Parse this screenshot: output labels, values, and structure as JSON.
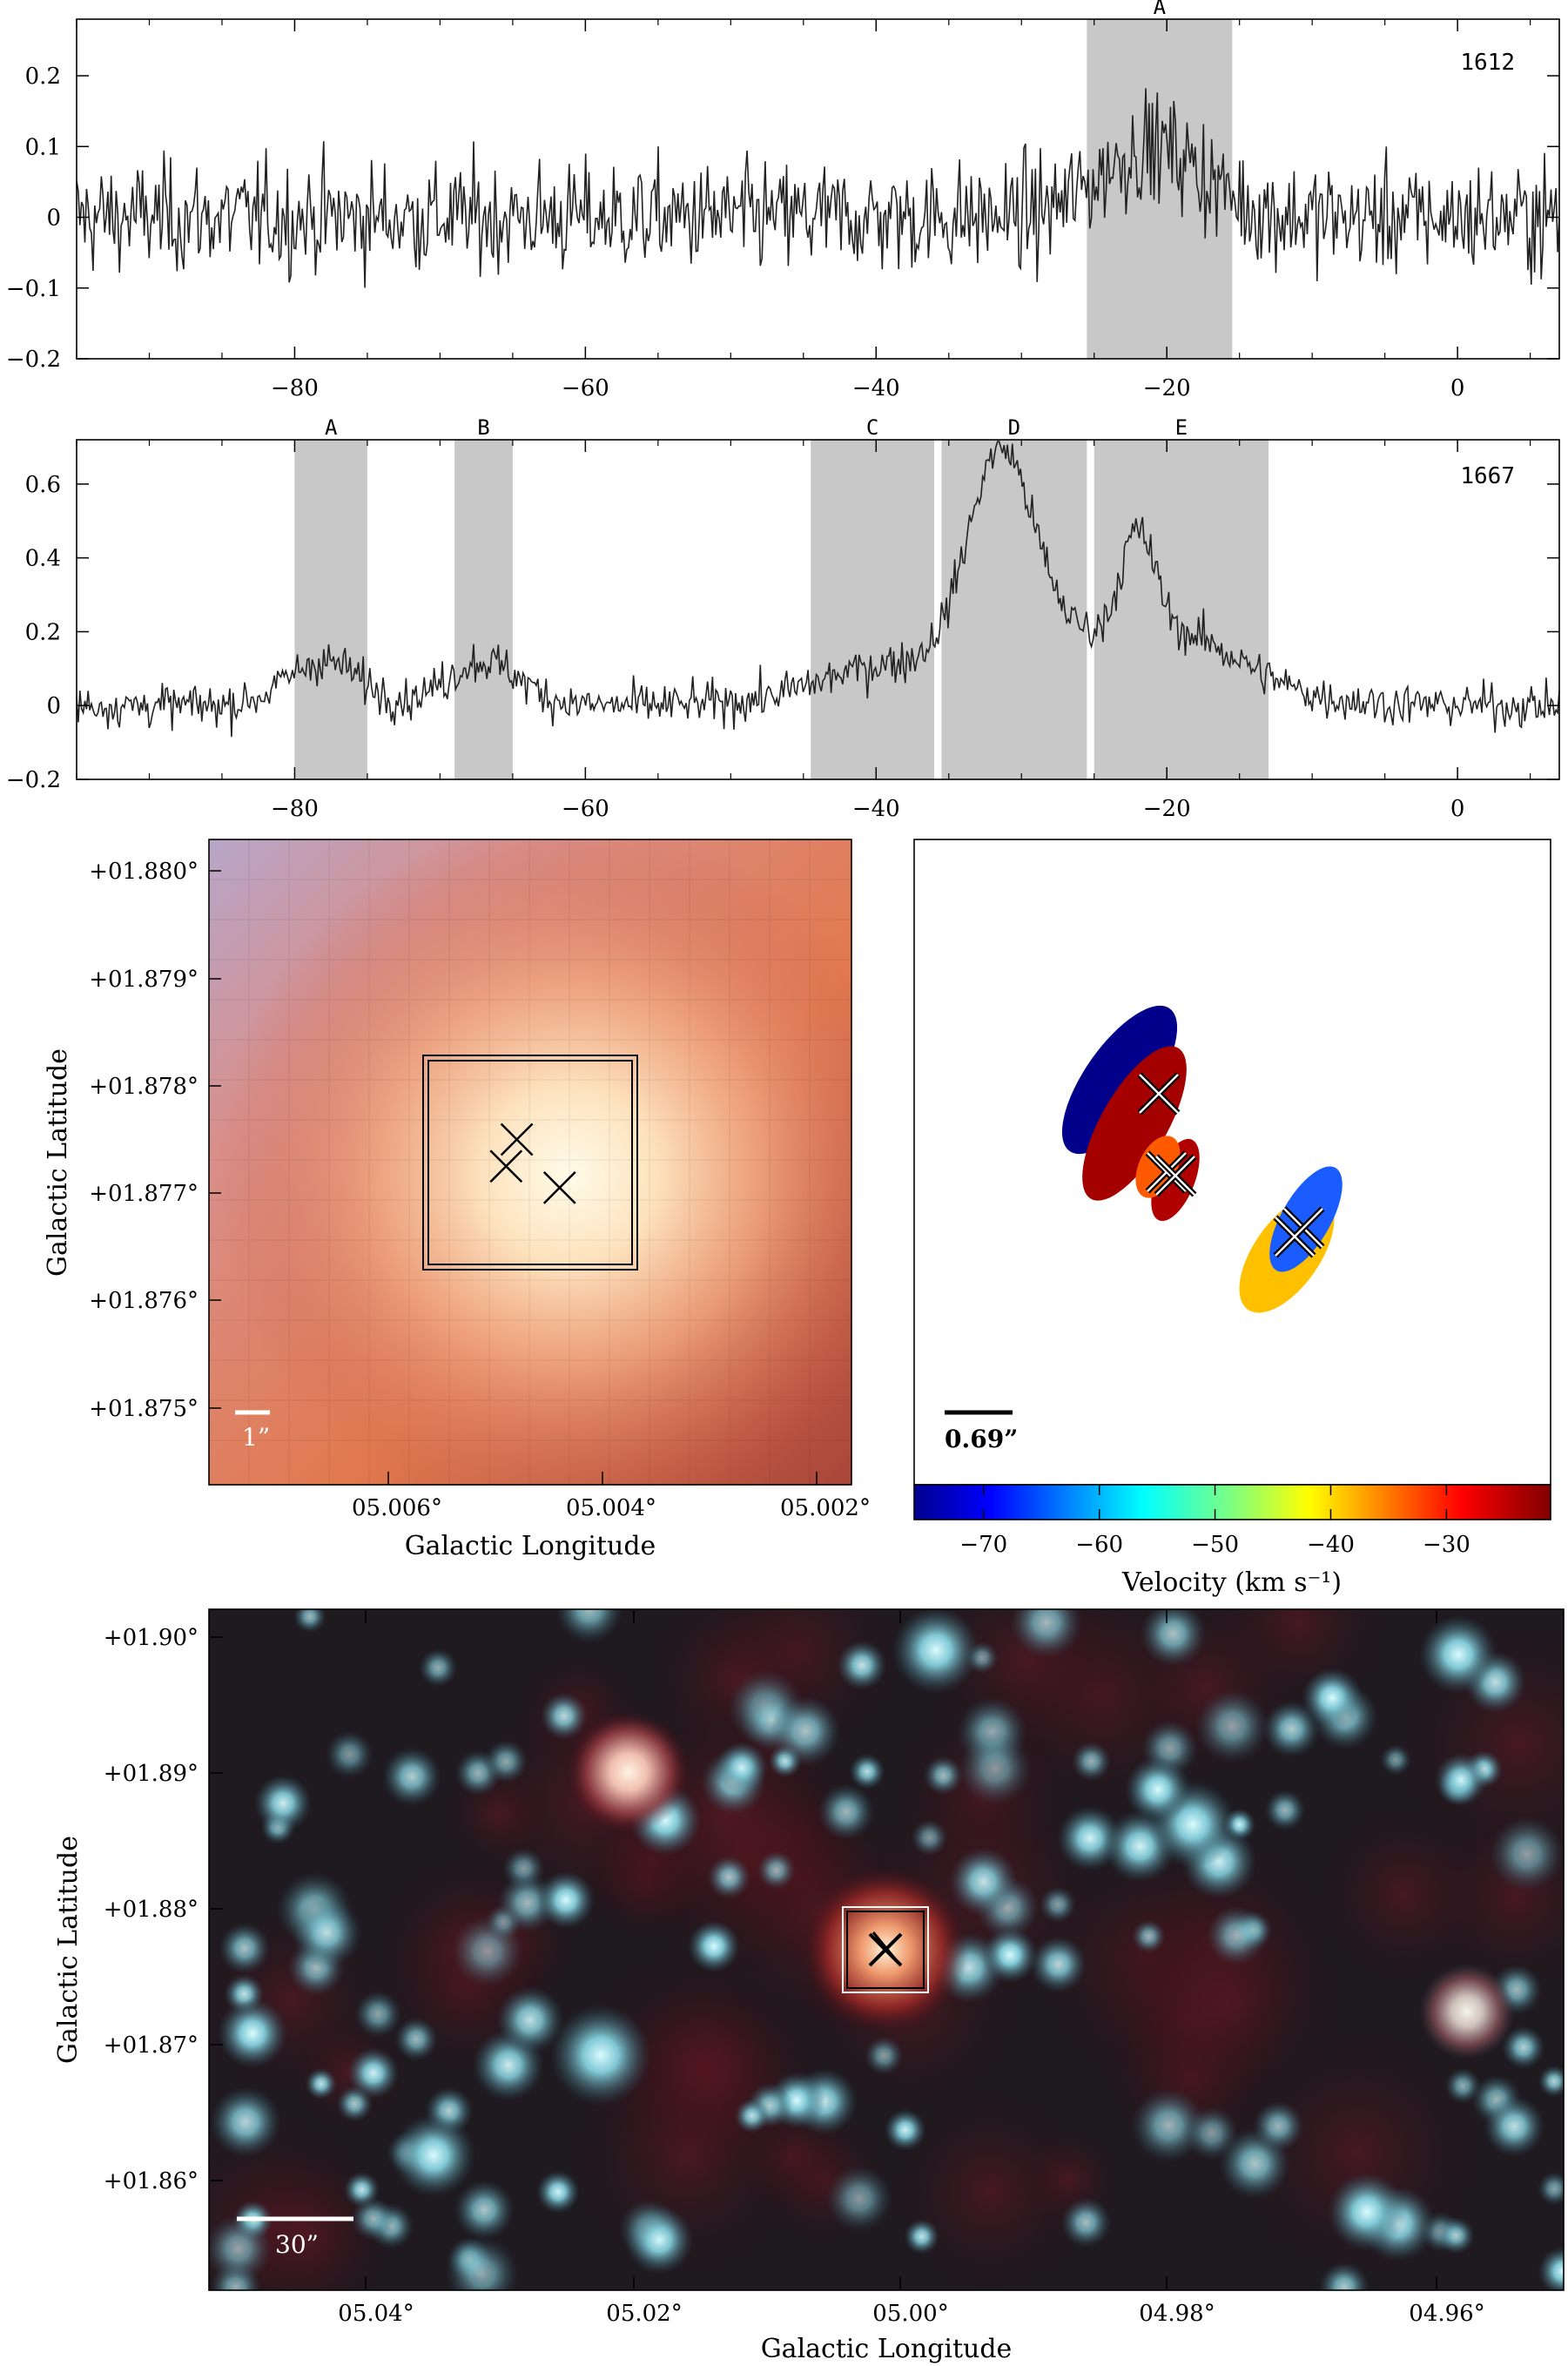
{
  "chart_data": [
    {
      "id": "spectrum_1612",
      "type": "line",
      "frequency_label": "1612",
      "xlim": [
        -95,
        7
      ],
      "ylim": [
        -0.2,
        0.28
      ],
      "x_ticks": [
        -80,
        -60,
        -40,
        -20,
        0
      ],
      "x_tick_labels": [
        "−80",
        "−60",
        "−40",
        "−20",
        "0"
      ],
      "y_ticks": [
        -0.2,
        -0.1,
        0,
        0.1,
        0.2
      ],
      "y_tick_labels": [
        "−0.2",
        "−0.1",
        "0",
        "0.1",
        "0.2"
      ],
      "noise_sigma": 0.055,
      "regions": [
        {
          "label": "A",
          "x": [
            -25.5,
            -15.5
          ]
        }
      ],
      "features": [
        {
          "center": -21,
          "width": 3.5,
          "amplitude": 0.1
        }
      ]
    },
    {
      "id": "spectrum_1667",
      "type": "line",
      "frequency_label": "1667",
      "xlim": [
        -95,
        7
      ],
      "ylim": [
        -0.2,
        0.72
      ],
      "x_ticks": [
        -80,
        -60,
        -40,
        -20,
        0
      ],
      "x_tick_labels": [
        "−80",
        "−60",
        "−40",
        "−20",
        "0"
      ],
      "y_ticks": [
        -0.2,
        0,
        0.2,
        0.4,
        0.6
      ],
      "y_tick_labels": [
        "−0.2",
        "0",
        "0.2",
        "0.4",
        "0.6"
      ],
      "noise_sigma": 0.04,
      "regions": [
        {
          "label": "A",
          "x": [
            -80,
            -75
          ]
        },
        {
          "label": "B",
          "x": [
            -69,
            -65
          ]
        },
        {
          "label": "C",
          "x": [
            -44.5,
            -36
          ]
        },
        {
          "label": "D",
          "x": [
            -35.5,
            -25.5
          ]
        },
        {
          "label": "E",
          "x": [
            -25,
            -13
          ]
        }
      ],
      "features": [
        {
          "center": -78,
          "width": 2.5,
          "amplitude": 0.12
        },
        {
          "center": -67,
          "width": 2.5,
          "amplitude": 0.12
        },
        {
          "center": -40,
          "width": 4,
          "amplitude": 0.06
        },
        {
          "center": -31.5,
          "width": 2.2,
          "amplitude": 0.52
        },
        {
          "center": -29,
          "width": 4,
          "amplitude": 0.12
        },
        {
          "center": -22,
          "width": 1.2,
          "amplitude": 0.28
        },
        {
          "center": -19,
          "width": 4,
          "amplitude": 0.12
        },
        {
          "center": -34,
          "width": 8,
          "amplitude": 0.06
        },
        {
          "center": -20,
          "width": 7,
          "amplitude": 0.06
        }
      ]
    },
    {
      "id": "zoom_image",
      "type": "heatmap",
      "ylabel": "Galactic Latitude",
      "xlabel": "Galactic Longitude",
      "x_tick_labels": [
        "05.006°",
        "05.004°",
        "05.002°"
      ],
      "y_tick_labels": [
        "+01.880°",
        "+01.879°",
        "+01.878°",
        "+01.877°",
        "+01.876°",
        "+01.875°"
      ],
      "scale_bar_label": "1”",
      "markers": [
        {
          "l": 5.0048,
          "b": 1.8775
        },
        {
          "l": 5.0049,
          "b": 1.87725
        },
        {
          "l": 5.0044,
          "b": 1.87705
        }
      ]
    },
    {
      "id": "maser_spots",
      "type": "scatter",
      "scale_bar_label": "0.69”",
      "colorbar": {
        "label": "Velocity (km s⁻¹)",
        "ticks": [
          -70,
          -60,
          -50,
          -40,
          -30
        ],
        "tick_labels": [
          "−70",
          "−60",
          "−50",
          "−40",
          "−30"
        ],
        "range": [
          -76,
          -21
        ]
      },
      "spots": [
        {
          "velocity": -76,
          "color": "#00008b"
        },
        {
          "velocity": -22,
          "color": "#a50000"
        },
        {
          "velocity": -20,
          "color": "#b00000"
        },
        {
          "velocity": -27,
          "color": "#ff5a00"
        },
        {
          "velocity": -33,
          "color": "#ffc000"
        },
        {
          "velocity": -58,
          "color": "#1a5cff"
        }
      ]
    },
    {
      "id": "wide_field",
      "type": "heatmap",
      "ylabel": "Galactic Latitude",
      "xlabel": "Galactic Longitude",
      "x_tick_labels": [
        "05.04°",
        "05.02°",
        "05.00°",
        "04.98°",
        "04.96°"
      ],
      "y_tick_labels": [
        "+01.90°",
        "+01.89°",
        "+01.88°",
        "+01.87°",
        "+01.86°"
      ],
      "scale_bar_label": "30”"
    }
  ],
  "colors": {
    "region_fill": "#c8c8c8",
    "trace": "#222222",
    "cross": "#000000"
  }
}
